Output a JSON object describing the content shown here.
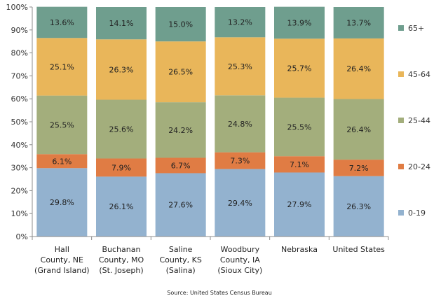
{
  "chart_data": {
    "type": "bar",
    "stacked": true,
    "percent_stacked": true,
    "categories": [
      [
        "Hall",
        "County, NE",
        "(Grand Island)"
      ],
      [
        "Buchanan",
        "County, MO",
        "(St. Joseph)"
      ],
      [
        "Saline",
        "County, KS",
        "(Salina)"
      ],
      [
        "Woodbury",
        "County, IA",
        "(Sioux City)"
      ],
      [
        "Nebraska"
      ],
      [
        "United States"
      ]
    ],
    "series": [
      {
        "name": "0-19",
        "color": "#93b2cf",
        "values": [
          29.8,
          26.1,
          27.6,
          29.4,
          27.9,
          26.3
        ],
        "labels": [
          "29.8%",
          "26.1%",
          "27.6%",
          "29.4%",
          "27.9%",
          "26.3%"
        ]
      },
      {
        "name": "20-24",
        "color": "#e07c44",
        "values": [
          6.1,
          7.9,
          6.7,
          7.3,
          7.1,
          7.2
        ],
        "labels": [
          "6.1%",
          "7.9%",
          "6.7%",
          "7.3%",
          "7.1%",
          "7.2%"
        ]
      },
      {
        "name": "25-44",
        "color": "#a3ae7c",
        "values": [
          25.5,
          25.6,
          24.2,
          24.8,
          25.5,
          26.4
        ],
        "labels": [
          "25.5%",
          "25.6%",
          "24.2%",
          "24.8%",
          "25.5%",
          "26.4%"
        ]
      },
      {
        "name": "45-64",
        "color": "#e9b65a",
        "values": [
          25.1,
          26.3,
          26.5,
          25.3,
          25.7,
          26.4
        ],
        "labels": [
          "25.1%",
          "26.3%",
          "26.5%",
          "25.3%",
          "25.7%",
          "26.4%"
        ]
      },
      {
        "name": "65+",
        "color": "#6f9e8e",
        "values": [
          13.6,
          14.1,
          15.0,
          13.2,
          13.9,
          13.7
        ],
        "labels": [
          "13.6%",
          "14.1%",
          "15.0%",
          "13.2%",
          "13.9%",
          "13.7%"
        ]
      }
    ],
    "ylim": [
      0,
      100
    ],
    "yticks": [
      0,
      10,
      20,
      30,
      40,
      50,
      60,
      70,
      80,
      90,
      100
    ],
    "ytick_labels": [
      "0%",
      "10%",
      "20%",
      "30%",
      "40%",
      "50%",
      "60%",
      "70%",
      "80%",
      "90%",
      "100%"
    ],
    "grid": false,
    "legend_position": "right",
    "source": "Source: United States Census Bureau"
  }
}
